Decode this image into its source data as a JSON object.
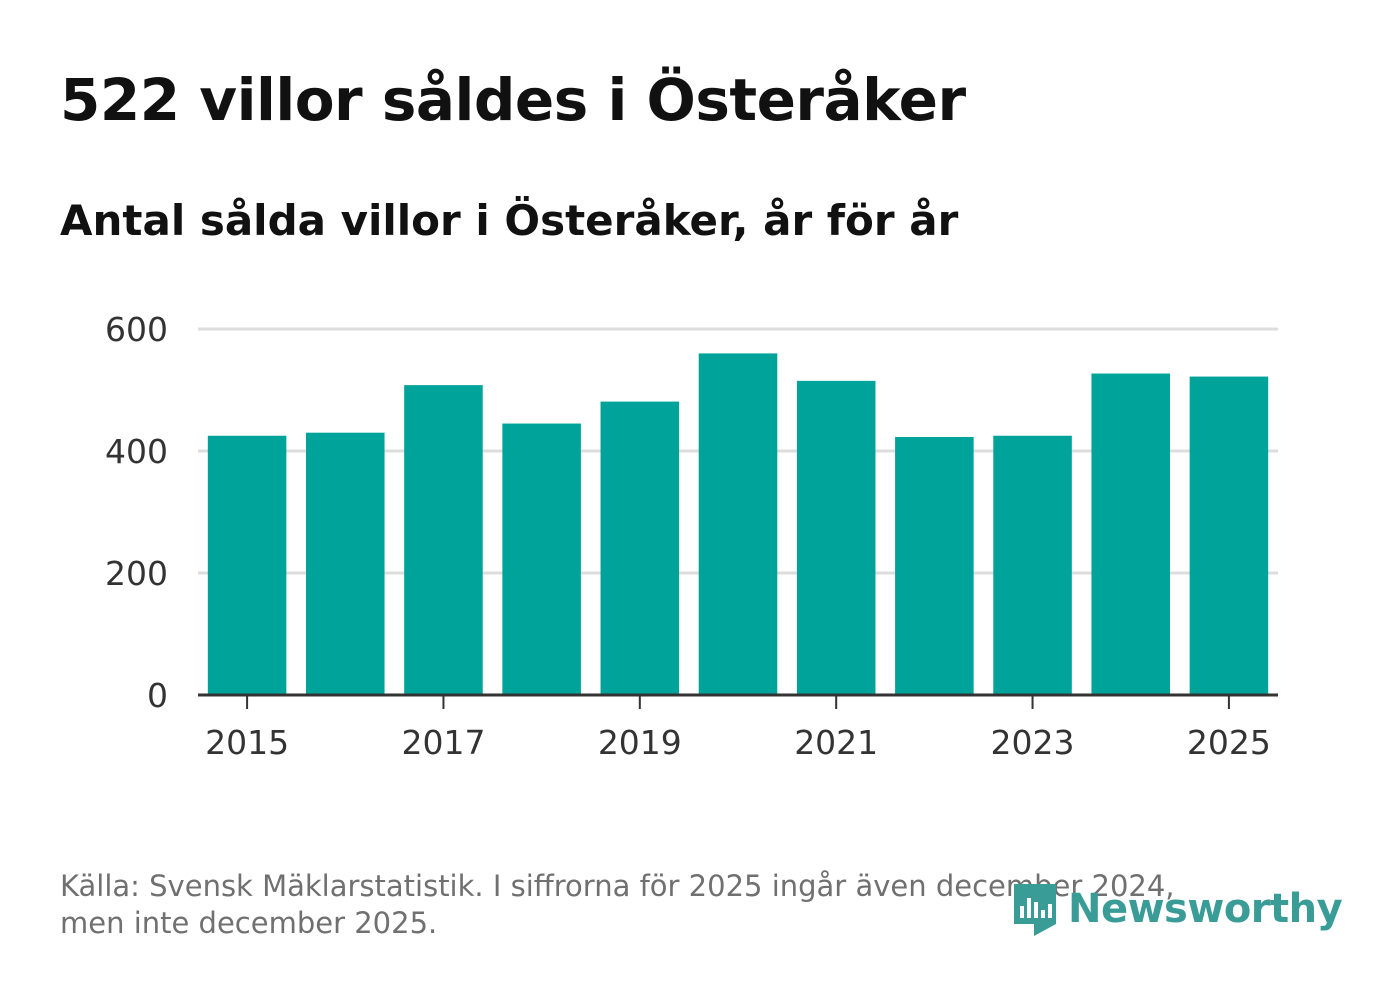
{
  "title": "522 villor såldes i Österåker",
  "subtitle": "Antal sålda villor i Österåker, år för år",
  "footer": {
    "line1": "Källa: Svensk Mäklarstatistik. I siffrorna för 2025 ingår även december 2024,",
    "line2": "men inte december 2025."
  },
  "brand": {
    "name": "Newsworthy",
    "icon": "newsworthy-logo-icon"
  },
  "colors": {
    "bar": "#00a39a",
    "grid": "#dddddd",
    "axis": "#333333",
    "brand": "#3a9c96"
  },
  "chart_data": {
    "type": "bar",
    "categories": [
      "2015",
      "2016",
      "2017",
      "2018",
      "2019",
      "2020",
      "2021",
      "2022",
      "2023",
      "2024",
      "2025"
    ],
    "values": [
      425,
      430,
      508,
      445,
      481,
      560,
      515,
      423,
      425,
      527,
      522
    ],
    "x_tick_labels": [
      "2015",
      "2017",
      "2019",
      "2021",
      "2023",
      "2025"
    ],
    "y_ticks": [
      0,
      200,
      400,
      600
    ],
    "ylim": [
      0,
      600
    ],
    "title": "522 villor såldes i Österåker",
    "subtitle": "Antal sålda villor i Österåker, år för år",
    "xlabel": "",
    "ylabel": "",
    "grid": true
  }
}
